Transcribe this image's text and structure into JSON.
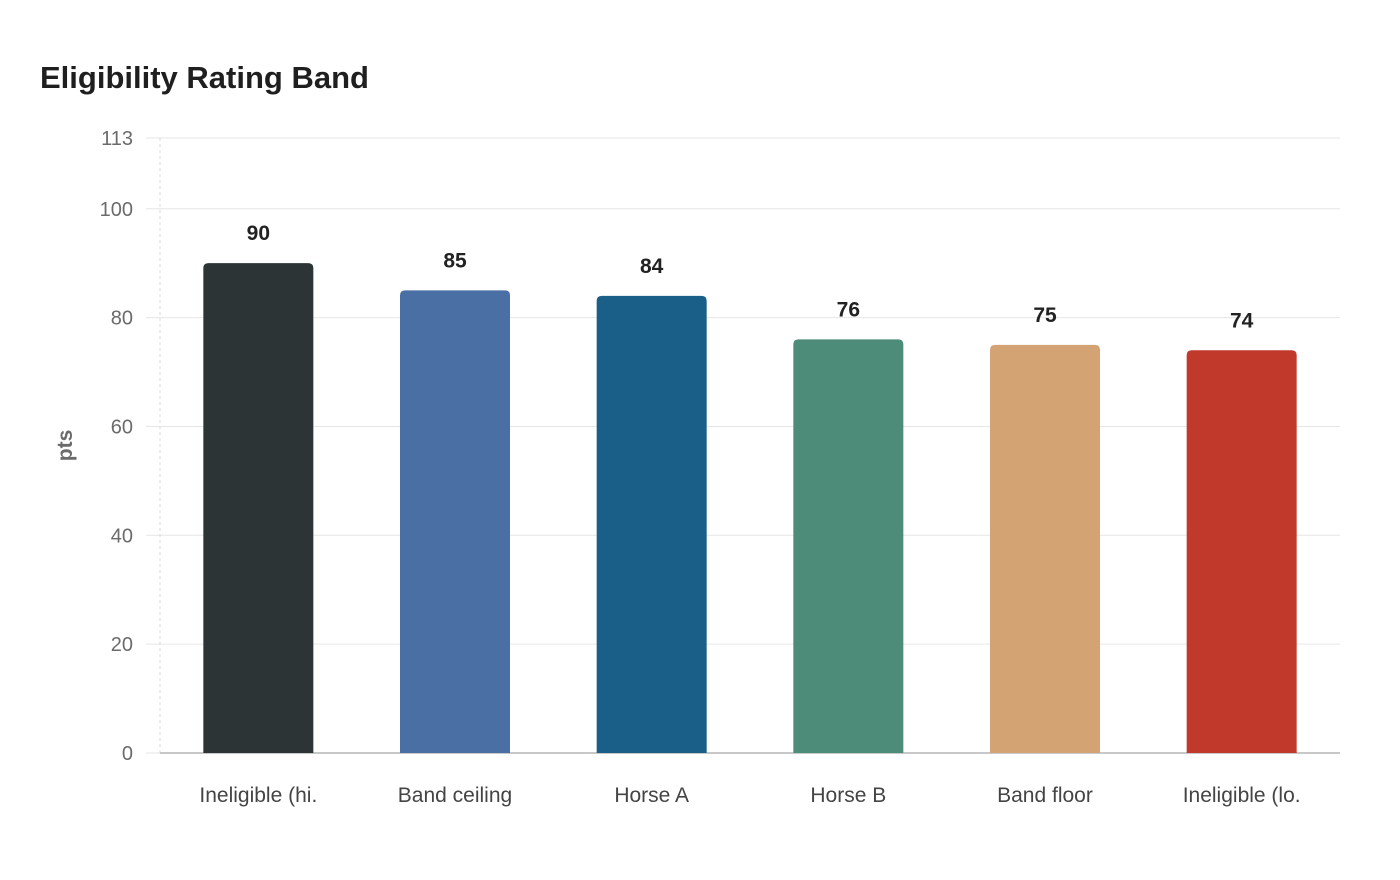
{
  "chart_data": {
    "type": "bar",
    "title": "Eligibility Rating Band",
    "xlabel": "",
    "ylabel": "pts",
    "ylim": [
      0,
      113
    ],
    "yticks": [
      0,
      20,
      40,
      60,
      80,
      100,
      113
    ],
    "grid": true,
    "legend": "none",
    "categories": [
      "Ineligible (hi.",
      "Band ceiling",
      "Horse A",
      "Horse B",
      "Band floor",
      "Ineligible (lo."
    ],
    "values": [
      90,
      85,
      84,
      76,
      75,
      74
    ],
    "colors": [
      "#2d3436",
      "#4a6fa5",
      "#1a5f87",
      "#4e8c7a",
      "#d4a373",
      "#c0392b"
    ]
  }
}
